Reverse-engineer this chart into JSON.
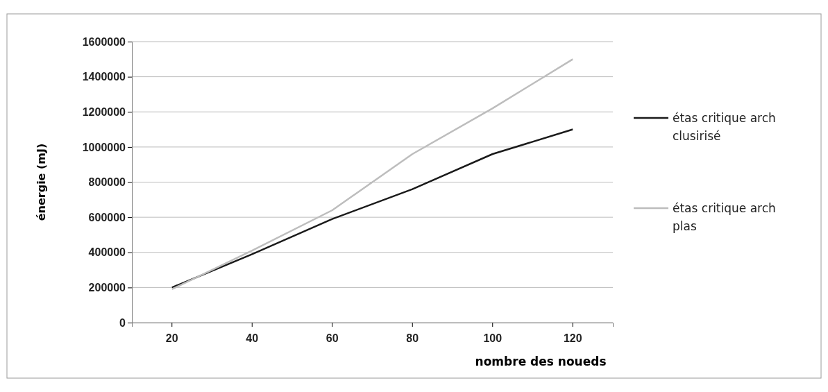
{
  "chart_data": {
    "type": "line",
    "xlabel": "nombre des noueds",
    "ylabel": "énergie (mJ)",
    "categories": [
      "20",
      "40",
      "60",
      "80",
      "100",
      "120"
    ],
    "series": [
      {
        "name": "étas critique arch clusirisé",
        "color": "#1a1a1a",
        "values": [
          200000,
          390000,
          590000,
          760000,
          960000,
          1100000
        ]
      },
      {
        "name": "étas critique arch plas",
        "color": "#bdbdbd",
        "values": [
          190000,
          410000,
          640000,
          960000,
          1220000,
          1500000
        ]
      }
    ],
    "ylim": [
      0,
      1600000
    ],
    "yticks": [
      0,
      200000,
      400000,
      600000,
      800000,
      1000000,
      1200000,
      1400000,
      1600000
    ],
    "grid": "y",
    "legend": "right",
    "marker": "none",
    "line_style": "solid"
  }
}
